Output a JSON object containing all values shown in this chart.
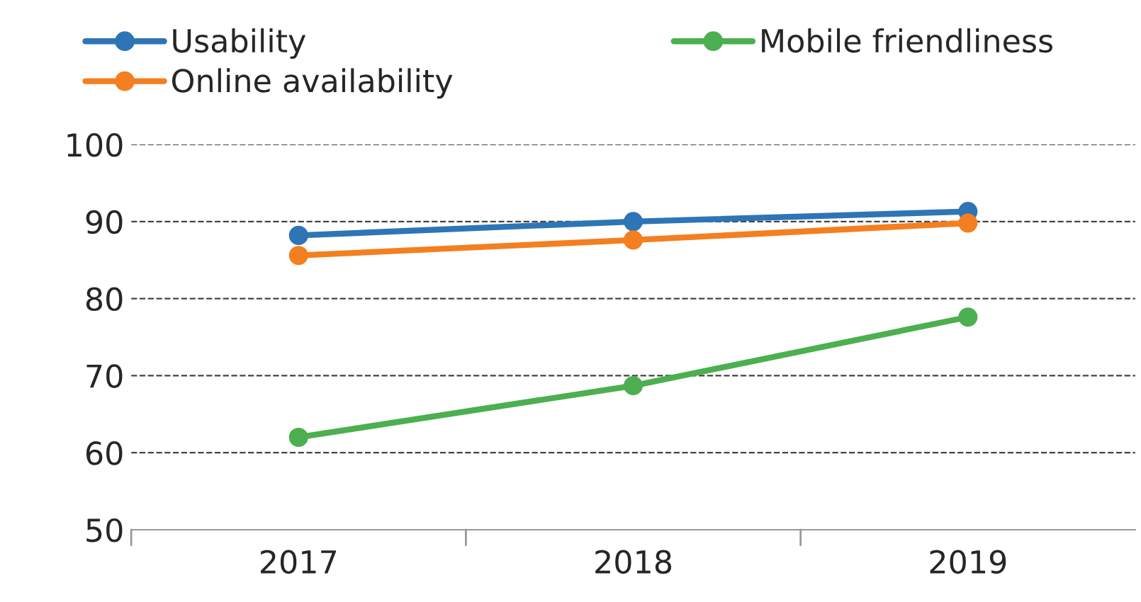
{
  "chart_data": {
    "type": "line",
    "categories": [
      "2017",
      "2018",
      "2019"
    ],
    "series": [
      {
        "name": "Usability",
        "color": "#2e75b6",
        "values": [
          88.2,
          90,
          91.3
        ]
      },
      {
        "name": "Online availability",
        "color": "#f47f20",
        "values": [
          85.6,
          87.6,
          89.8
        ]
      },
      {
        "name": "Mobile friendliness",
        "color": "#4caf50",
        "values": [
          62,
          68.7,
          77.6
        ]
      }
    ],
    "ylim": [
      50,
      100
    ],
    "yticks": [
      50,
      60,
      70,
      80,
      90,
      100
    ],
    "grid": "y",
    "legend": "top",
    "marker": "circle",
    "line_style": "solid"
  }
}
